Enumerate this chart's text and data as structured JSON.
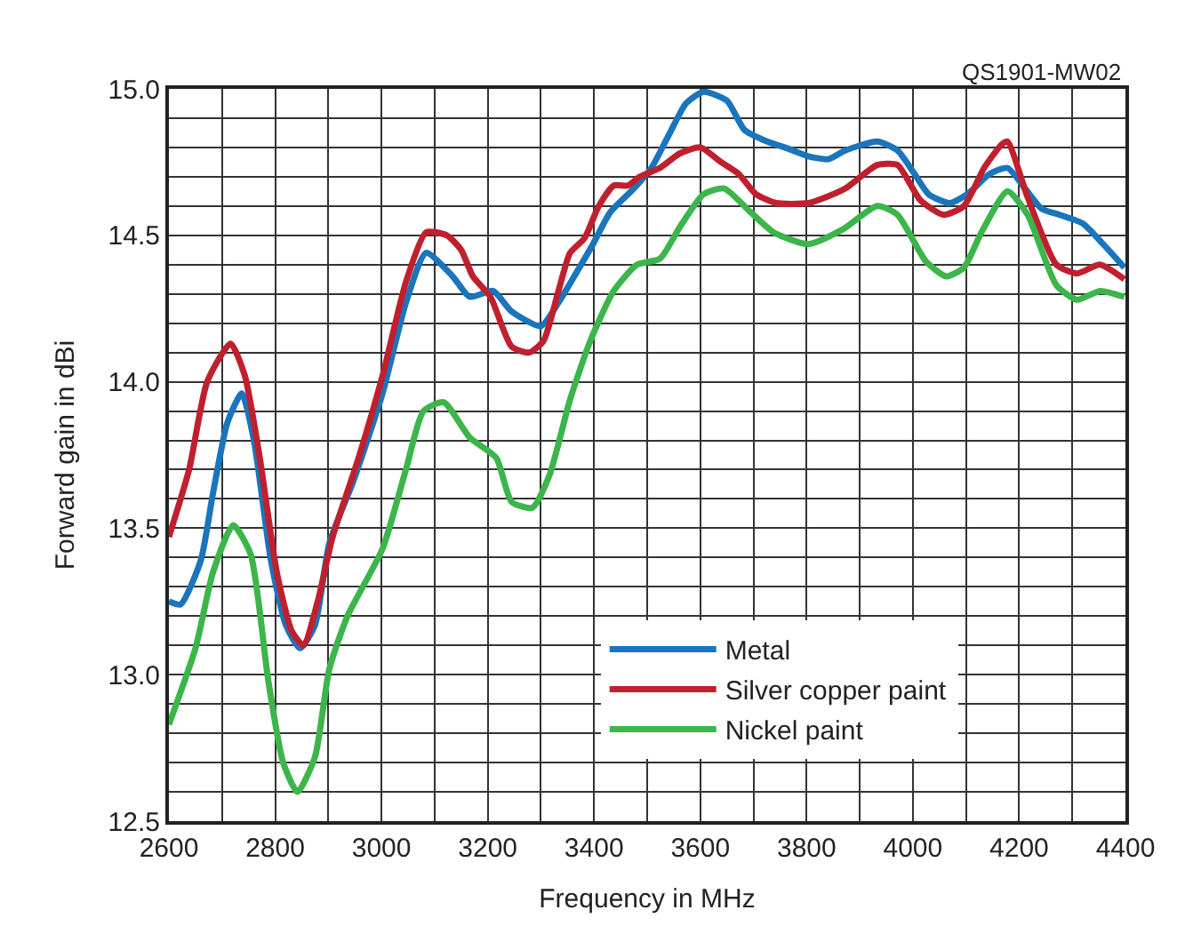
{
  "chart_data": {
    "type": "line",
    "xlabel": "Frequency in MHz",
    "ylabel": "Forward gain in dBi",
    "annotations": [
      "QS1901-MW02"
    ],
    "xlim": [
      2600,
      4400
    ],
    "ylim": [
      12.5,
      15.0
    ],
    "xticks": [
      2600,
      {
        "value": 2700,
        "label": null
      },
      2800,
      {
        "value": 2900,
        "label": null
      },
      3000,
      {
        "value": 3100,
        "label": null
      },
      3200,
      {
        "value": 3300,
        "label": null
      },
      3400,
      {
        "value": 3500,
        "label": null
      },
      3600,
      {
        "value": 3700,
        "label": null
      },
      3800,
      {
        "value": 3900,
        "label": null
      },
      4000,
      {
        "value": 4100,
        "label": null
      },
      4200,
      {
        "value": 4300,
        "label": null
      },
      4400
    ],
    "yticks": [
      {
        "value": 12.5,
        "label": "12.5"
      },
      {
        "value": 12.6,
        "label": null
      },
      {
        "value": 12.7,
        "label": null
      },
      {
        "value": 12.8,
        "label": null
      },
      {
        "value": 12.9,
        "label": null
      },
      {
        "value": 13.0,
        "label": "13.0"
      },
      {
        "value": 13.1,
        "label": null
      },
      {
        "value": 13.2,
        "label": null
      },
      {
        "value": 13.3,
        "label": null
      },
      {
        "value": 13.4,
        "label": null
      },
      {
        "value": 13.5,
        "label": "13.5"
      },
      {
        "value": 13.6,
        "label": null
      },
      {
        "value": 13.7,
        "label": null
      },
      {
        "value": 13.8,
        "label": null
      },
      {
        "value": 13.9,
        "label": null
      },
      {
        "value": 14.0,
        "label": "14.0"
      },
      {
        "value": 14.1,
        "label": null
      },
      {
        "value": 14.2,
        "label": null
      },
      {
        "value": 14.3,
        "label": null
      },
      {
        "value": 14.4,
        "label": null
      },
      {
        "value": 14.5,
        "label": "14.5"
      },
      {
        "value": 14.6,
        "label": null
      },
      {
        "value": 14.7,
        "label": null
      },
      {
        "value": 14.8,
        "label": null
      },
      {
        "value": 14.9,
        "label": null
      },
      {
        "value": 15.0,
        "label": "15.0"
      }
    ],
    "grid": true,
    "legend": "bottom right",
    "marker": "none",
    "line_style": "solid",
    "series": [
      {
        "name": "Metal",
        "color": "#1a75bc",
        "x": [
          2600,
          2622,
          2660,
          2683,
          2710,
          2737,
          2760,
          2792,
          2820,
          2847,
          2875,
          2902,
          2947,
          3002,
          3046,
          3084,
          3134,
          3166,
          3210,
          3245,
          3300,
          3333,
          3366,
          3398,
          3431,
          3475,
          3508,
          3540,
          3573,
          3606,
          3650,
          3683,
          3726,
          3759,
          3803,
          3841,
          3873,
          3933,
          3971,
          4003,
          4030,
          4069,
          4102,
          4145,
          4178,
          4211,
          4243,
          4276,
          4320,
          4358,
          4398
        ],
        "values": [
          13.25,
          13.24,
          13.39,
          13.62,
          13.86,
          13.96,
          13.8,
          13.39,
          13.17,
          13.09,
          13.17,
          13.45,
          13.66,
          13.96,
          14.27,
          14.44,
          14.36,
          14.29,
          14.31,
          14.24,
          14.19,
          14.27,
          14.37,
          14.47,
          14.58,
          14.66,
          14.73,
          14.84,
          14.95,
          14.99,
          14.96,
          14.86,
          14.82,
          14.8,
          14.77,
          14.76,
          14.79,
          14.82,
          14.79,
          14.71,
          14.64,
          14.61,
          14.64,
          14.71,
          14.73,
          14.66,
          14.59,
          14.57,
          14.54,
          14.47,
          14.39
        ]
      },
      {
        "name": "Silver copper paint",
        "color": "#c0202e",
        "x": [
          2600,
          2638,
          2672,
          2716,
          2743,
          2771,
          2803,
          2831,
          2853,
          2880,
          2908,
          2957,
          3002,
          3046,
          3084,
          3123,
          3150,
          3172,
          3205,
          3245,
          3278,
          3305,
          3333,
          3355,
          3382,
          3409,
          3437,
          3464,
          3486,
          3524,
          3562,
          3600,
          3639,
          3672,
          3705,
          3743,
          3803,
          3836,
          3873,
          3933,
          3971,
          4014,
          4058,
          4096,
          4134,
          4167,
          4178,
          4216,
          4270,
          4309,
          4352,
          4398
        ],
        "values": [
          13.47,
          13.7,
          14.0,
          14.13,
          14.02,
          13.74,
          13.35,
          13.15,
          13.1,
          13.25,
          13.47,
          13.74,
          14.02,
          14.34,
          14.51,
          14.5,
          14.45,
          14.36,
          14.29,
          14.12,
          14.1,
          14.14,
          14.31,
          14.44,
          14.49,
          14.6,
          14.67,
          14.67,
          14.7,
          14.73,
          14.78,
          14.8,
          14.75,
          14.71,
          14.64,
          14.61,
          14.61,
          14.63,
          14.66,
          14.74,
          14.74,
          14.62,
          14.57,
          14.6,
          14.73,
          14.81,
          14.82,
          14.63,
          14.4,
          14.37,
          14.4,
          14.35
        ]
      },
      {
        "name": "Nickel paint",
        "color": "#3cb54a",
        "x": [
          2600,
          2650,
          2683,
          2721,
          2754,
          2787,
          2815,
          2842,
          2875,
          2902,
          2936,
          3002,
          3046,
          3079,
          3117,
          3166,
          3216,
          3245,
          3284,
          3316,
          3355,
          3393,
          3437,
          3481,
          3524,
          3562,
          3606,
          3645,
          3694,
          3738,
          3803,
          3868,
          3933,
          3971,
          4025,
          4063,
          4096,
          4129,
          4178,
          4216,
          4270,
          4309,
          4352,
          4398
        ],
        "values": [
          12.83,
          13.09,
          13.35,
          13.51,
          13.41,
          12.98,
          12.7,
          12.6,
          12.72,
          13.02,
          13.2,
          13.43,
          13.7,
          13.9,
          13.93,
          13.81,
          13.74,
          13.59,
          13.57,
          13.68,
          13.94,
          14.14,
          14.31,
          14.4,
          14.42,
          14.53,
          14.64,
          14.66,
          14.58,
          14.51,
          14.47,
          14.52,
          14.6,
          14.57,
          14.41,
          14.36,
          14.39,
          14.51,
          14.65,
          14.57,
          14.33,
          14.28,
          14.31,
          14.29
        ]
      }
    ]
  }
}
